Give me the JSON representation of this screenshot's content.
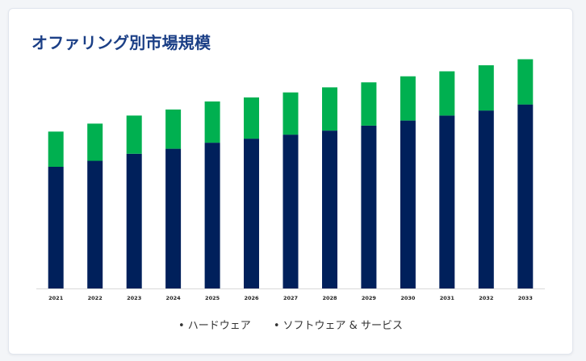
{
  "title": "オファリング別市場規模",
  "colors": {
    "hardware": "#00205b",
    "software": "#00b050",
    "title": "#1b3f86",
    "baseline": "#d9d9d9"
  },
  "chart_data": {
    "type": "bar",
    "stacked": true,
    "title": "オファリング別市場規模",
    "xlabel": "",
    "ylabel": "",
    "grid": false,
    "legend_position": "bottom",
    "ylim": [
      0,
      230
    ],
    "categories": [
      "2021",
      "2022",
      "2023",
      "2024",
      "2025",
      "2026",
      "2027",
      "2028",
      "2029",
      "2030",
      "2031",
      "2032",
      "2033"
    ],
    "series": [
      {
        "name": "ハードウェア",
        "values": [
          121,
          127,
          134,
          139,
          145,
          149,
          153,
          157,
          162,
          167,
          172,
          177,
          183
        ]
      },
      {
        "name": "ソフトウェア & サービス",
        "values": [
          35,
          37,
          38,
          39,
          41,
          41,
          42,
          43,
          43,
          44,
          44,
          45,
          45
        ]
      }
    ]
  }
}
